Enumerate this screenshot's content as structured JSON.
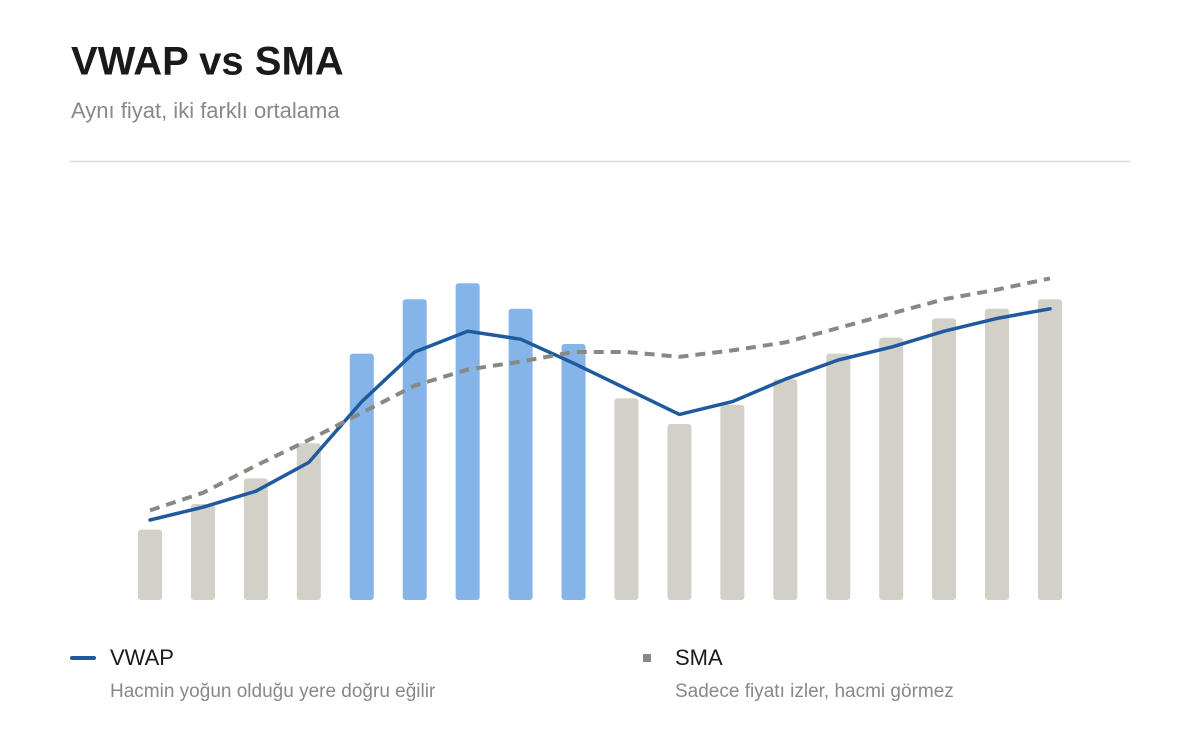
{
  "chart_data": {
    "type": "bar",
    "title": "VWAP vs SMA",
    "subtitle": "Aynı fiyat, iki farklı ortalama",
    "ylim": [
      0,
      105
    ],
    "bars": {
      "values": [
        22,
        30,
        38,
        49,
        77,
        94,
        99,
        91,
        80,
        63,
        55,
        61,
        69,
        77,
        82,
        88,
        91,
        94
      ],
      "colors": [
        "#d3d0c8",
        "#d3d0c8",
        "#d3d0c8",
        "#d3d0c8",
        "#85b5e8",
        "#85b5e8",
        "#85b5e8",
        "#85b5e8",
        "#85b5e8",
        "#d3d0c8",
        "#d3d0c8",
        "#d3d0c8",
        "#d3d0c8",
        "#d3d0c8",
        "#d3d0c8",
        "#d3d0c8",
        "#d3d0c8",
        "#d3d0c8"
      ]
    },
    "series": [
      {
        "name": "VWAP",
        "description": "Hacmin yoğun olduğu yere doğru eğilir",
        "color": "#1f5a9e",
        "dashed": false,
        "values": [
          25,
          29,
          34,
          43,
          62,
          77.5,
          84,
          81.5,
          74,
          66,
          58,
          62,
          69,
          75,
          79,
          84,
          88,
          91
        ]
      },
      {
        "name": "SMA",
        "description": "Sadece fiyatı izler, hacmi görmez",
        "color": "#8a8883",
        "dashed": true,
        "values": [
          28,
          33.5,
          42,
          50,
          58.5,
          67,
          72,
          74.5,
          77.5,
          77.5,
          76,
          78,
          80.5,
          85,
          89.5,
          94,
          97,
          100.5
        ]
      }
    ]
  }
}
